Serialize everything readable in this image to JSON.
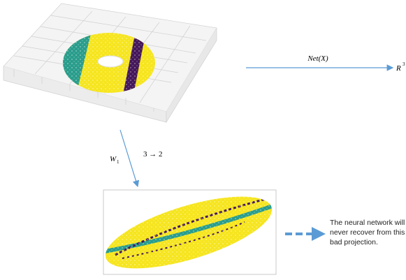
{
  "top_arrow": {
    "label": "Net(X)",
    "target": {
      "base": "R",
      "exponent": "3"
    }
  },
  "down_arrow": {
    "weight": {
      "base": "W",
      "subscript": "1"
    },
    "dims": "3 → 2"
  },
  "caption": {
    "lines": [
      "The neural network will",
      "never recover from this",
      "bad projection."
    ]
  }
}
